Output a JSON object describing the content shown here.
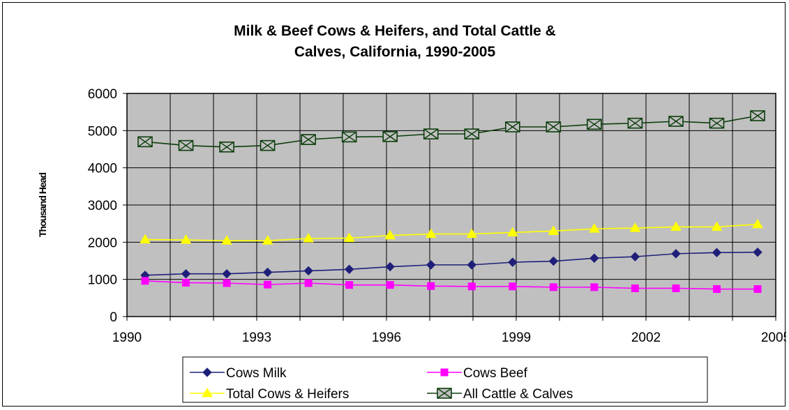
{
  "chart_data": {
    "type": "line",
    "title_line1": "Milk & Beef Cows & Heifers, and Total Cattle &",
    "title_line2": "Calves, California, 1990-2005",
    "xlabel": "",
    "ylabel": "Thousand Head",
    "ylim": [
      0,
      6000
    ],
    "y_ticks": [
      "0",
      "1000",
      "2000",
      "3000",
      "4000",
      "5000",
      "6000"
    ],
    "x": [
      1990,
      1991,
      1992,
      1993,
      1994,
      1995,
      1996,
      1997,
      1998,
      1999,
      2000,
      2001,
      2002,
      2003,
      2004,
      2005
    ],
    "x_tick_labels": [
      "1990",
      "1993",
      "1996",
      "1999",
      "2002",
      "2005"
    ],
    "grid": true,
    "plot_background": "#c0c0c0",
    "legend_position": "bottom",
    "series": [
      {
        "name": "Cows  Milk",
        "color": "#1f1f7a",
        "marker": "diamond",
        "values": [
          1110,
          1150,
          1150,
          1190,
          1230,
          1270,
          1340,
          1390,
          1390,
          1460,
          1490,
          1570,
          1610,
          1690,
          1720,
          1730
        ]
      },
      {
        "name": "Cows  Beef",
        "color": "#ff00ff",
        "marker": "square",
        "values": [
          960,
          910,
          900,
          860,
          900,
          850,
          850,
          820,
          810,
          810,
          790,
          790,
          760,
          760,
          740,
          740
        ]
      },
      {
        "name": "Total Cows & Heifers",
        "color": "#ffff00",
        "marker": "triangle",
        "values": [
          2070,
          2060,
          2040,
          2040,
          2100,
          2110,
          2180,
          2220,
          2220,
          2260,
          2300,
          2360,
          2380,
          2410,
          2410,
          2480
        ]
      },
      {
        "name": "All Cattle & Calves",
        "color": "#0b3d0b",
        "marker": "boxx",
        "values": [
          4700,
          4600,
          4560,
          4600,
          4760,
          4830,
          4840,
          4910,
          4910,
          5100,
          5100,
          5170,
          5200,
          5250,
          5200,
          5400
        ]
      }
    ]
  }
}
